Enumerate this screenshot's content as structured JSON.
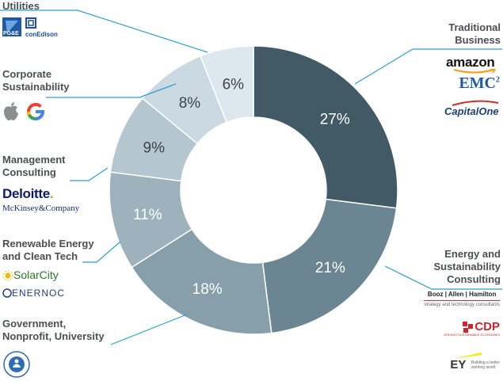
{
  "chart_data": {
    "type": "pie",
    "style": "donut",
    "value_format": "{v}%",
    "categories": [
      "Traditional Business",
      "Energy and Sustainability Consulting",
      "Government, Nonprofit, University",
      "Renewable Energy and Clean Tech",
      "Management Consulting",
      "Corporate Sustainability",
      "Utilities"
    ],
    "values": [
      27,
      21,
      18,
      11,
      9,
      8,
      6
    ],
    "colors": [
      "#425a66",
      "#6b8592",
      "#879fab",
      "#9db2bd",
      "#b4c6cf",
      "#cbdae2",
      "#dce7ee"
    ],
    "callout_color": "#2b9fd3"
  },
  "labels": {
    "utilities": "Utilities",
    "corporate_line1": "Corporate",
    "corporate_line2": "Sustainability",
    "management_line1": "Management",
    "management_line2": "Consulting",
    "renewable_line1": "Renewable Energy",
    "renewable_line2": "and Clean Tech",
    "government_line1": "Government,",
    "government_line2": "Nonprofit, University",
    "traditional_line1": "Traditional",
    "traditional_line2": "Business",
    "energy_line1": "Energy and",
    "energy_line2": "Sustainability",
    "energy_line3": "Consulting"
  },
  "logos": {
    "amazon": "amazon",
    "emc": "EMC",
    "emc_sup": "2",
    "capital_one": "CapitalOne",
    "deloitte": "Deloitte",
    "deloitte_dot": ".",
    "mckinsey": "McKinsey&Company",
    "solarcity": "SolarCity",
    "enernoc": "ENERNOC",
    "pge": "PG&E",
    "conedison": "conEdison",
    "booz": "Booz | Allen | Hamilton",
    "booz_tag": "strategy and technology consultants",
    "cdp": "CDP",
    "cdp_tag": "DRIVING SUSTAINABLE ECONOMIES",
    "ey": "EY",
    "ey_tag_line1": "Building a better",
    "ey_tag_line2": "working world",
    "icons": [
      "apple-logo-icon",
      "google-logo-icon",
      "epa-seal-icon"
    ]
  }
}
